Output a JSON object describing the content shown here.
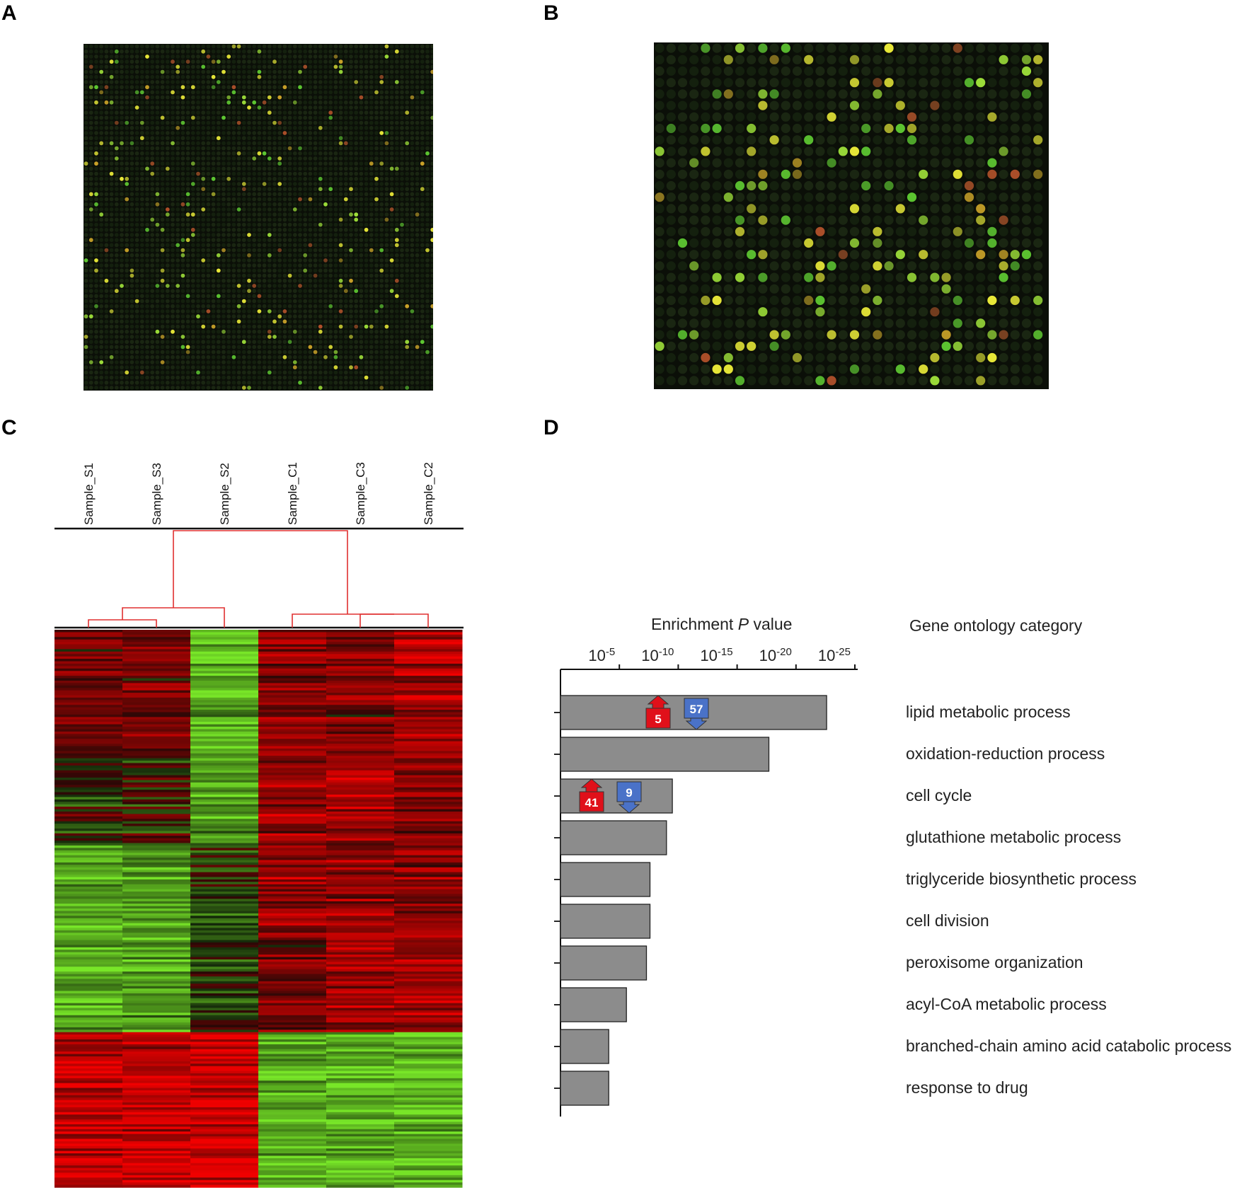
{
  "panels": {
    "a": "A",
    "b": "B",
    "c": "C",
    "d": "D"
  },
  "colors": {
    "bar_fill": "#8c8c8c",
    "up_marker": "#e0101a",
    "down_marker": "#4a72c8",
    "dendrogram": "#e03030",
    "heat_red": "#e01010",
    "heat_green": "#7ee030"
  },
  "chart_data": [
    {
      "type": "heatmap",
      "panel": "C",
      "samples": [
        "Sample_S1",
        "Sample_S3",
        "Sample_S2",
        "Sample_C1",
        "Sample_C3",
        "Sample_C2"
      ],
      "dendrogram": "hierarchical clustering: ((Sample_S1, Sample_S3), Sample_S2) and (Sample_C1, (Sample_C3, Sample_C2))",
      "color_scale": [
        "green",
        "black",
        "red"
      ]
    },
    {
      "type": "bar",
      "panel": "D",
      "orientation": "horizontal",
      "xlabel_prefix": "Enrichment ",
      "xlabel_italic": "P",
      "xlabel_suffix": " value",
      "right_header": "Gene ontology category",
      "xscale": "log (-log10 P)",
      "xlim": [
        0,
        25
      ],
      "ticks": [
        {
          "value": 5,
          "base": "10",
          "exp": "-5"
        },
        {
          "value": 10,
          "base": "10",
          "exp": "-10"
        },
        {
          "value": 15,
          "base": "10",
          "exp": "-15"
        },
        {
          "value": 20,
          "base": "10",
          "exp": "-20"
        },
        {
          "value": 25,
          "base": "10",
          "exp": "-25"
        }
      ],
      "categories": [
        "lipid metabolic process",
        "oxidation-reduction process",
        "cell cycle",
        "glutathione metabolic process",
        "triglyceride biosynthetic process",
        "cell division",
        "peroxisome organization",
        "acyl-CoA metabolic process",
        "branched-chain amino acid catabolic process",
        "response to drug"
      ],
      "values": [
        22.6,
        17.7,
        9.5,
        9.0,
        7.6,
        7.6,
        7.3,
        5.6,
        4.1,
        4.1
      ],
      "annotations": [
        {
          "category": "lipid metabolic process",
          "up": "5",
          "down": "57"
        },
        {
          "category": "cell cycle",
          "up": "41",
          "down": "9"
        }
      ]
    }
  ]
}
